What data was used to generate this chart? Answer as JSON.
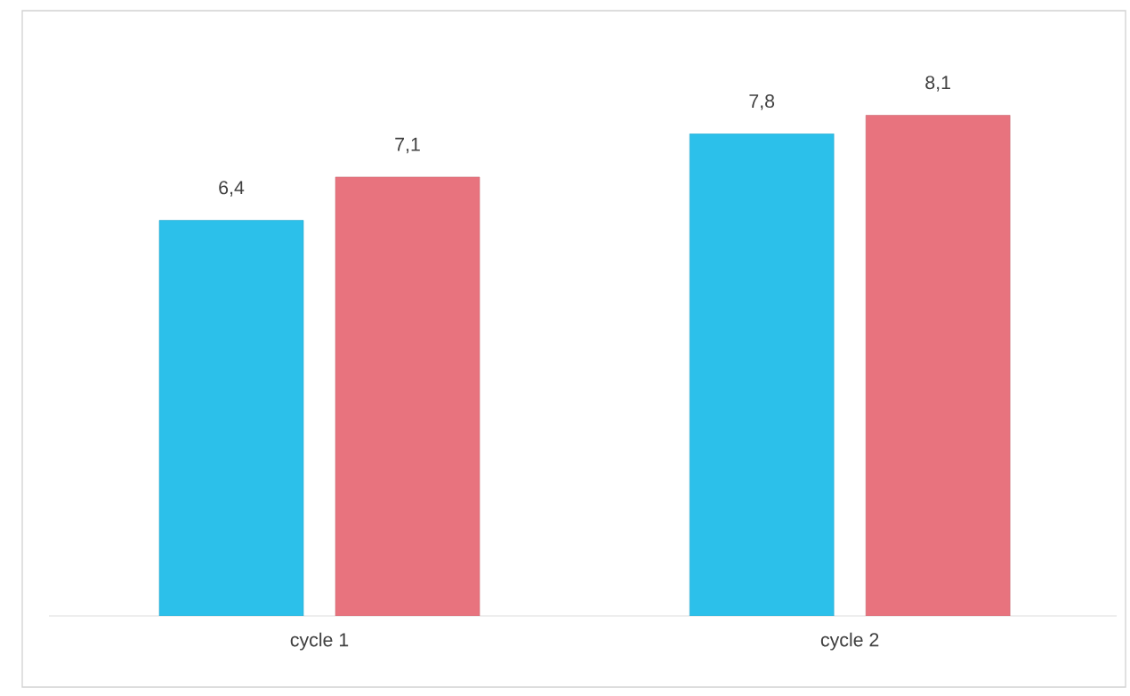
{
  "chart_data": {
    "type": "bar",
    "categories": [
      "cycle  1",
      "cycle 2"
    ],
    "series": [
      {
        "color": "#2cc0ea",
        "values": [
          6.4,
          7.8
        ],
        "value_labels": [
          "6,4",
          "7,8"
        ]
      },
      {
        "color": "#e8737e",
        "values": [
          7.1,
          8.1
        ],
        "value_labels": [
          "7,1",
          "8,1"
        ]
      }
    ]
  }
}
